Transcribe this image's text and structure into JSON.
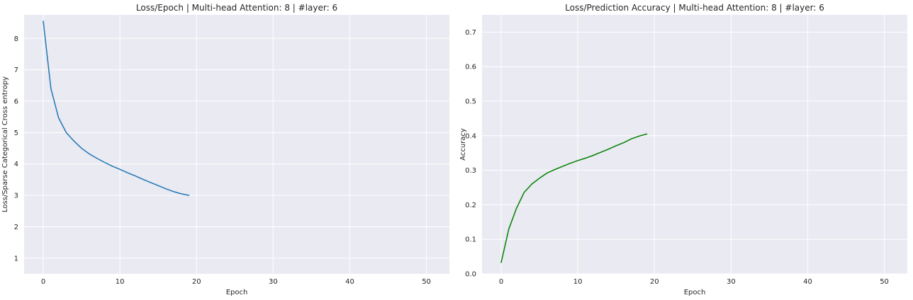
{
  "colors": {
    "figure_background": "#ffffff",
    "axes_background": "#eaeaf2",
    "grid": "#ffffff",
    "text": "#262626"
  },
  "chart_data": [
    {
      "type": "line",
      "title": "Loss/Epoch | Multi-head Attention: 8 | #layer: 6",
      "xlabel": "Epoch",
      "ylabel": "Loss/Sparse Categorical Cross entropy",
      "xlim": [
        -2.5,
        53
      ],
      "ylim": [
        0.5,
        8.75
      ],
      "xticks": [
        0,
        10,
        20,
        30,
        40,
        50
      ],
      "yticks": [
        1,
        2,
        3,
        4,
        5,
        6,
        7,
        8
      ],
      "grid": true,
      "legend": "none",
      "series": [
        {
          "color": "#1f77b4",
          "x": [
            0,
            1,
            2,
            3,
            4,
            5,
            6,
            7,
            8,
            9,
            10,
            11,
            12,
            13,
            14,
            15,
            16,
            17,
            18,
            19
          ],
          "y": [
            8.55,
            6.4,
            5.47,
            5.0,
            4.73,
            4.5,
            4.32,
            4.18,
            4.05,
            3.93,
            3.83,
            3.72,
            3.62,
            3.51,
            3.41,
            3.31,
            3.21,
            3.12,
            3.05,
            3.0
          ]
        }
      ]
    },
    {
      "type": "line",
      "title": "Loss/Prediction Accuracy | Multi-head Attention: 8 | #layer: 6",
      "xlabel": "Epoch",
      "ylabel": "Accuracy",
      "xlim": [
        -2.5,
        53
      ],
      "ylim": [
        0.0,
        0.75
      ],
      "xticks": [
        0,
        10,
        20,
        30,
        40,
        50
      ],
      "yticks": [
        0.0,
        0.1,
        0.2,
        0.3,
        0.4,
        0.5,
        0.6,
        0.7
      ],
      "ytick_decimals": 1,
      "grid": true,
      "legend": "none",
      "series": [
        {
          "color": "#008000",
          "x": [
            0,
            1,
            2,
            3,
            4,
            5,
            6,
            7,
            8,
            9,
            10,
            11,
            12,
            13,
            14,
            15,
            16,
            17,
            18,
            19
          ],
          "y": [
            0.033,
            0.13,
            0.19,
            0.236,
            0.26,
            0.277,
            0.292,
            0.302,
            0.311,
            0.32,
            0.328,
            0.335,
            0.343,
            0.352,
            0.361,
            0.371,
            0.38,
            0.391,
            0.399,
            0.405
          ]
        }
      ]
    }
  ]
}
